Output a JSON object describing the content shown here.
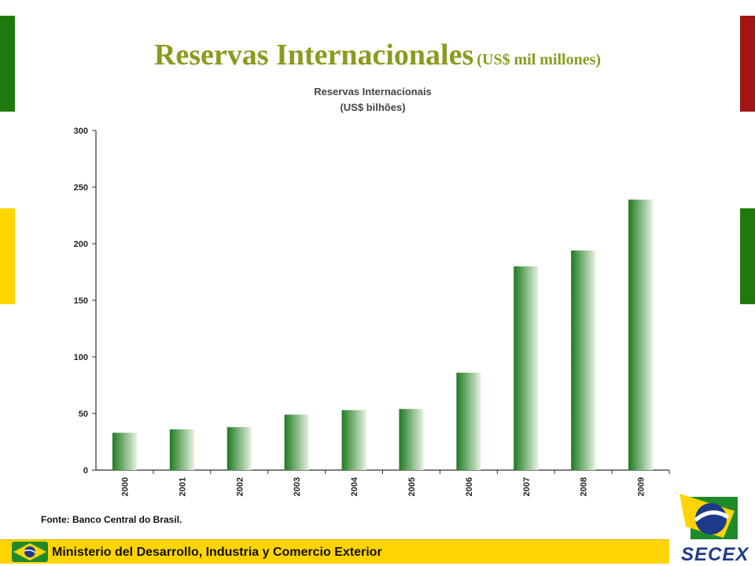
{
  "slide": {
    "title": "Reservas Internacionales",
    "title_unit": "(US$ mil millones)",
    "source": "Fonte: Banco Central do Brasil.",
    "footer": "Ministerio del Desarrollo, Industria y Comercio Exterior",
    "logo_text": "SECEX"
  },
  "colors": {
    "title": "#8c9a1e",
    "bar_dark": "#1f7a1f",
    "bar_light": "#e6f2e2",
    "left_top": "#1f7a0d",
    "left_bottom": "#ffd400",
    "right_top": "#a31515",
    "right_bottom": "#1f7a0d",
    "footer_bg": "#ffd400"
  },
  "chart_data": {
    "type": "bar",
    "title": "Reservas Internacionais",
    "subtitle": "(US$ bilhões)",
    "categories": [
      "2000",
      "2001",
      "2002",
      "2003",
      "2004",
      "2005",
      "2006",
      "2007",
      "2008",
      "2009"
    ],
    "values": [
      33,
      36,
      38,
      49,
      53,
      54,
      86,
      180,
      194,
      239
    ],
    "ylim": [
      0,
      300
    ],
    "yticks": [
      "0",
      "50",
      "100",
      "150",
      "200",
      "250",
      "300"
    ],
    "grid": false,
    "legend": "none"
  }
}
